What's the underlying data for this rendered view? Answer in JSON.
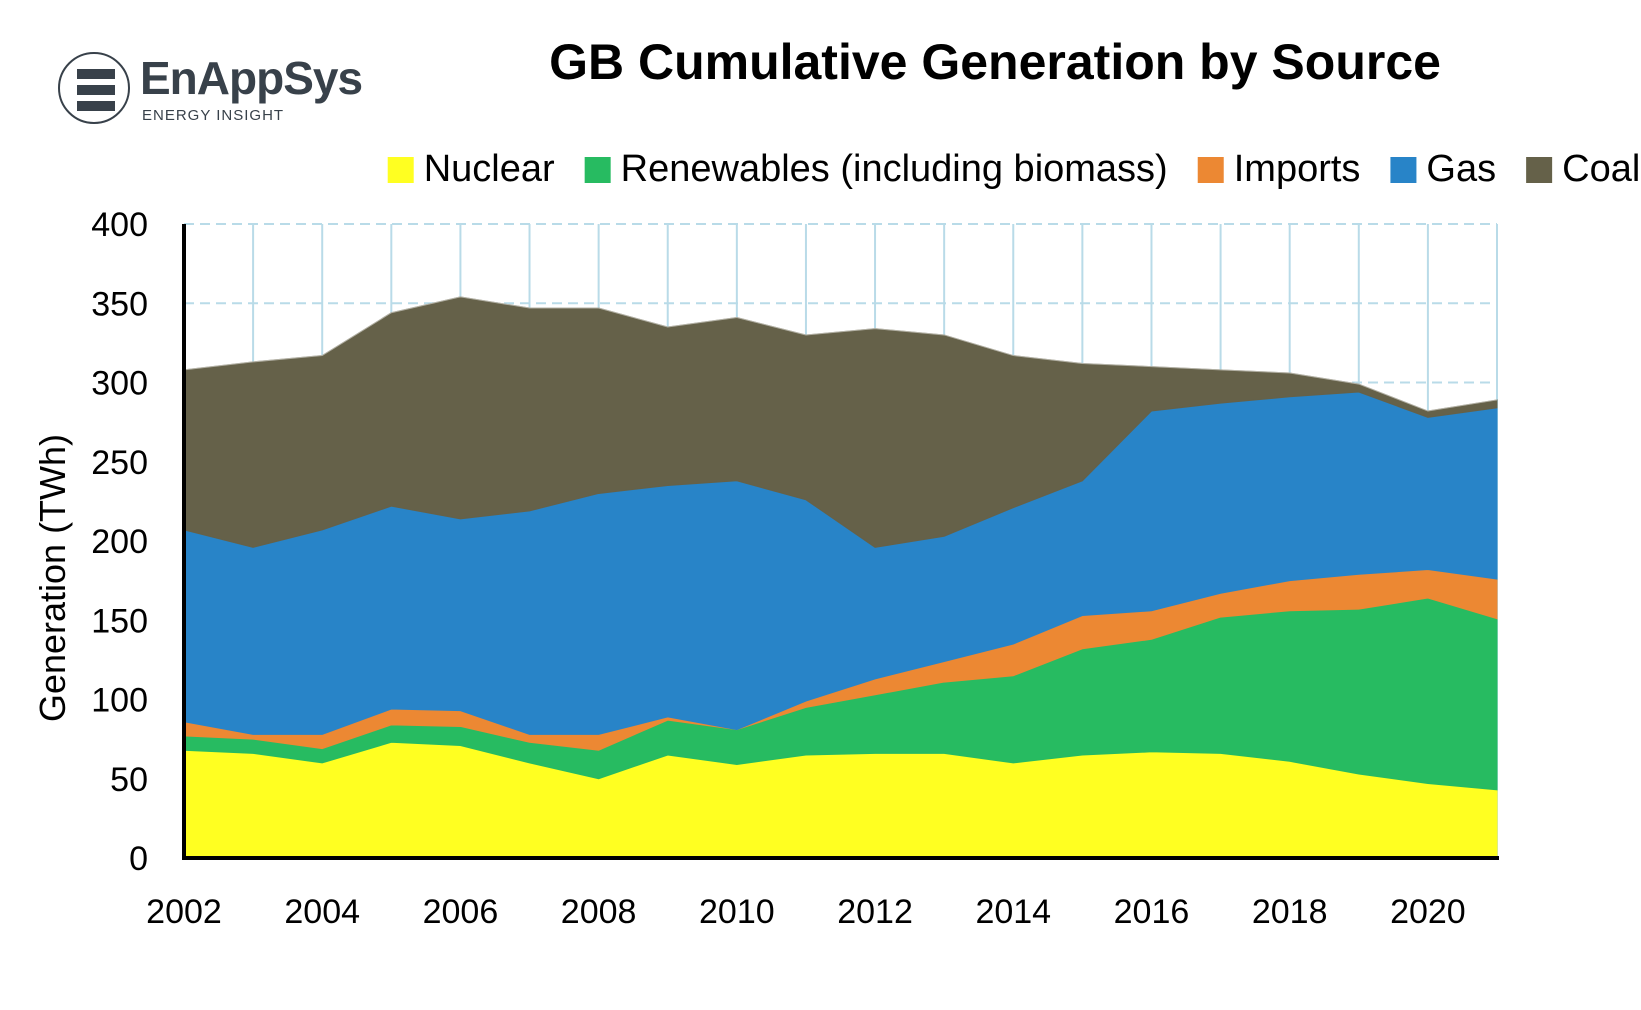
{
  "brand": {
    "name": "EnAppSys",
    "tagline": "ENERGY INSIGHT",
    "logo_icon": "enappsys-logo-icon"
  },
  "chart_data": {
    "type": "area",
    "stacked": true,
    "title": "GB Cumulative Generation by Source",
    "xlabel": "",
    "ylabel": "Generation (TWh)",
    "ylim": [
      0,
      400
    ],
    "yticks": [
      0,
      50,
      100,
      150,
      200,
      250,
      300,
      350,
      400
    ],
    "xlim": [
      2002,
      2021
    ],
    "xticks": [
      2002,
      2004,
      2006,
      2008,
      2010,
      2012,
      2014,
      2016,
      2018,
      2020
    ],
    "grid": true,
    "legend_position": "top",
    "x": [
      2002,
      2003,
      2004,
      2005,
      2006,
      2007,
      2008,
      2009,
      2010,
      2011,
      2012,
      2013,
      2014,
      2015,
      2016,
      2017,
      2018,
      2019,
      2020,
      2021
    ],
    "series": [
      {
        "name": "Nuclear",
        "color": "#ffff21",
        "values": [
          68,
          66,
          60,
          73,
          71,
          60,
          50,
          65,
          59,
          65,
          66,
          66,
          60,
          65,
          67,
          66,
          61,
          53,
          47,
          43
        ]
      },
      {
        "name": "Renewables (including biomass)",
        "color": "#27bb61",
        "values": [
          9,
          9,
          9,
          11,
          12,
          13,
          18,
          22,
          22,
          30,
          37,
          45,
          55,
          67,
          71,
          86,
          95,
          104,
          117,
          108
        ]
      },
      {
        "name": "Imports",
        "color": "#ec8833",
        "values": [
          9,
          3,
          9,
          10,
          10,
          5,
          10,
          2,
          0,
          4,
          10,
          13,
          20,
          21,
          18,
          15,
          19,
          22,
          18,
          25
        ]
      },
      {
        "name": "Gas",
        "color": "#2884c8",
        "values": [
          121,
          118,
          129,
          128,
          121,
          141,
          152,
          146,
          157,
          127,
          83,
          79,
          86,
          85,
          126,
          120,
          116,
          115,
          96,
          108
        ]
      },
      {
        "name": "Coal",
        "color": "#656149",
        "values": [
          101,
          117,
          110,
          122,
          140,
          128,
          117,
          100,
          103,
          104,
          138,
          127,
          96,
          74,
          28,
          21,
          15,
          5,
          4,
          5
        ]
      }
    ]
  }
}
